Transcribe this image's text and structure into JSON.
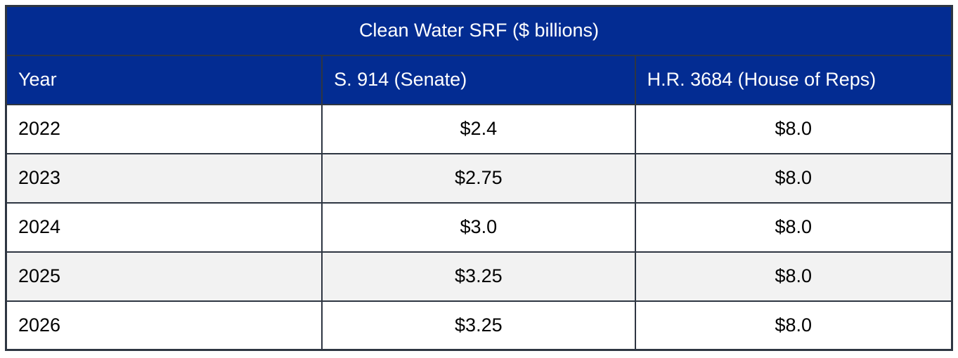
{
  "table": {
    "title": "Clean Water SRF ($ billions)",
    "columns": [
      "Year",
      "S. 914 (Senate)",
      "H.R. 3684 (House of Reps)"
    ],
    "rows": [
      [
        "2022",
        "$2.4",
        "$8.0"
      ],
      [
        "2023",
        "$2.75",
        "$8.0"
      ],
      [
        "2024",
        "$3.0",
        "$8.0"
      ],
      [
        "2025",
        "$3.25",
        "$8.0"
      ],
      [
        "2026",
        "$3.25",
        "$8.0"
      ]
    ],
    "colors": {
      "header_bg": "#032c92",
      "header_text": "#ffffff",
      "border": "#2e3642",
      "alt_row_bg": "#f2f2f2",
      "body_text": "#000000"
    }
  }
}
